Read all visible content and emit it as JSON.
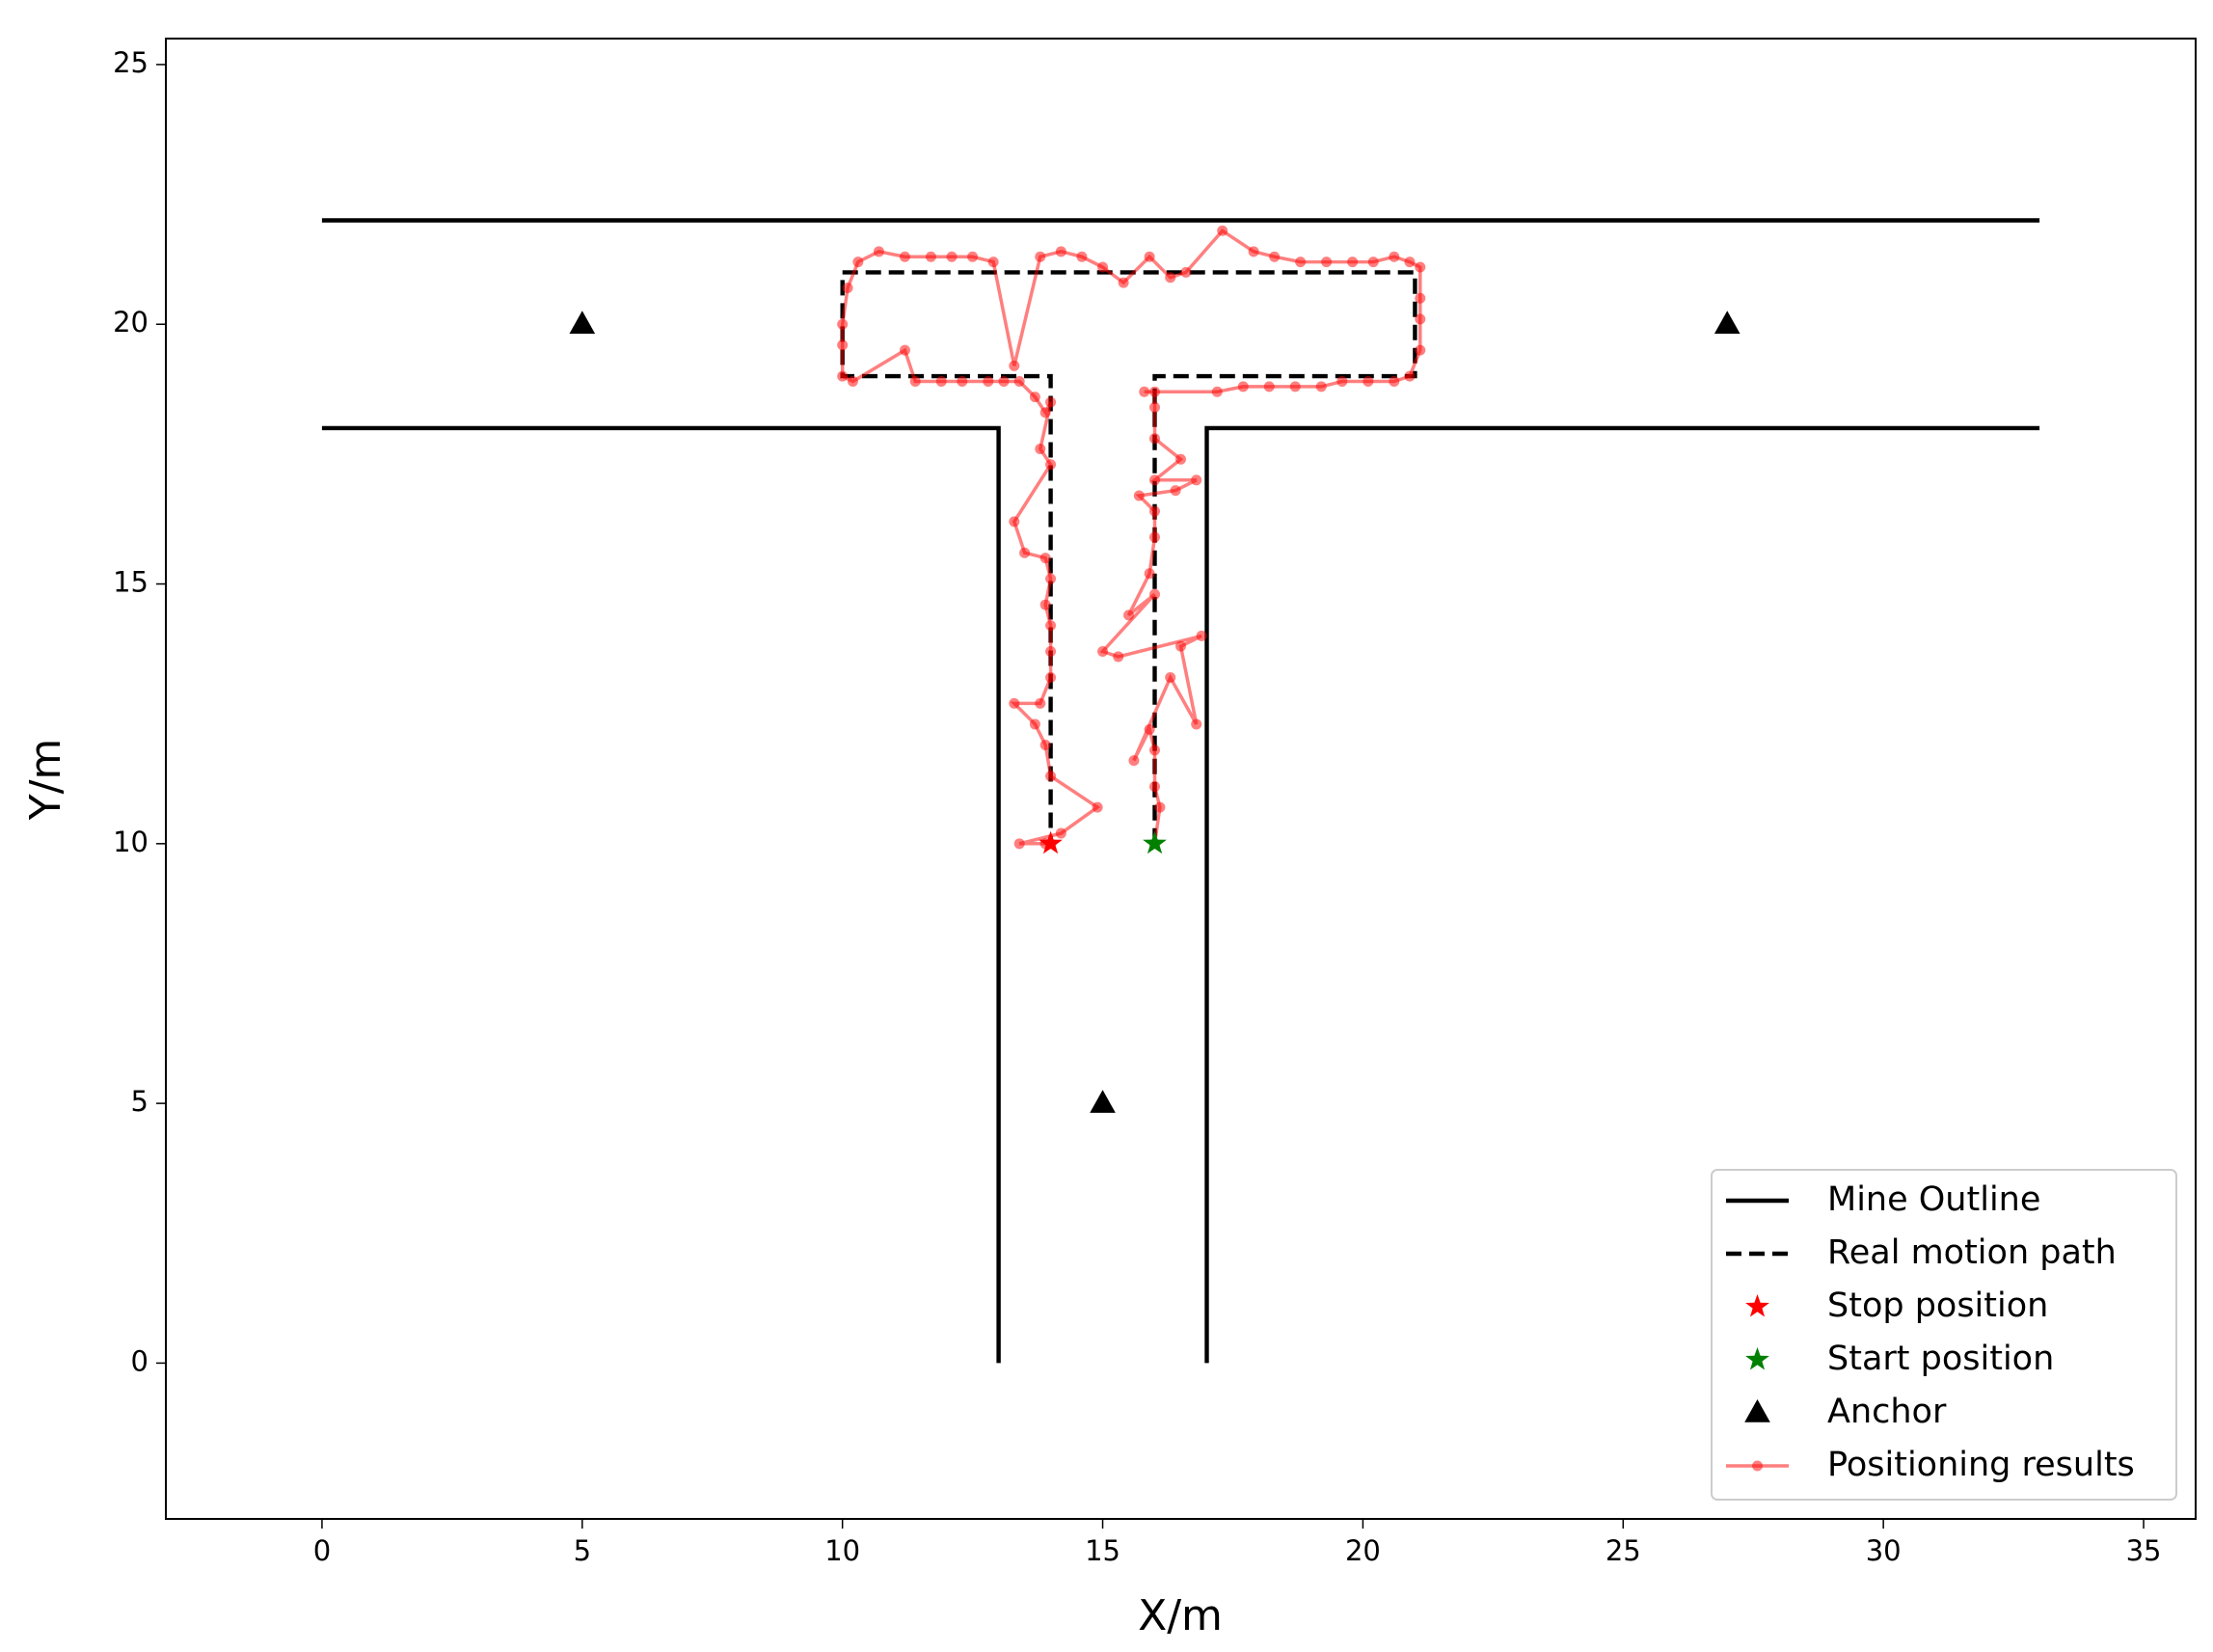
{
  "chart_data": {
    "type": "line",
    "xlabel": "X/m",
    "ylabel": "Y/m",
    "xlim": [
      -3,
      36
    ],
    "ylim": [
      -3,
      25.5
    ],
    "xticks": [
      0,
      5,
      10,
      15,
      20,
      25,
      30,
      35
    ],
    "yticks": [
      0,
      5,
      10,
      15,
      20,
      25
    ],
    "legend": "lower right",
    "series": [
      {
        "name": "Mine Outline",
        "color": "#000000",
        "style": "solid",
        "marker": "none",
        "x": [
          0,
          33,
          null,
          0,
          13,
          13,
          null,
          33,
          17,
          17
        ],
        "y": [
          22,
          22,
          null,
          18,
          18,
          0,
          null,
          18,
          18,
          0
        ]
      },
      {
        "name": "Real motion path",
        "color": "#000000",
        "style": "dashed",
        "marker": "none",
        "x": [
          16,
          16,
          21,
          21,
          10,
          10,
          14,
          14
        ],
        "y": [
          10,
          19,
          19,
          21,
          21,
          19,
          19,
          10
        ]
      },
      {
        "name": "Stop position",
        "color": "#ff0000",
        "style": "none",
        "marker": "star",
        "x": [
          14
        ],
        "y": [
          10
        ]
      },
      {
        "name": "Start position",
        "color": "#008000",
        "style": "none",
        "marker": "star",
        "x": [
          16
        ],
        "y": [
          10
        ]
      },
      {
        "name": "Anchor",
        "color": "#000000",
        "style": "none",
        "marker": "triangle",
        "x": [
          5,
          27,
          15
        ],
        "y": [
          20,
          20,
          5
        ]
      },
      {
        "name": "Positioning results",
        "color": "#ff0000",
        "style": "solid",
        "marker": "circle",
        "x": [
          16.0,
          16.1,
          16.0,
          16.0,
          15.9,
          15.6,
          16.3,
          16.8,
          16.5,
          16.9,
          15.3,
          15.0,
          16.0,
          15.5,
          15.9,
          16.0,
          16.0,
          15.7,
          16.4,
          16.8,
          16.0,
          16.5,
          16.0,
          16.0,
          16.0,
          15.8,
          17.2,
          17.7,
          18.2,
          18.7,
          19.2,
          19.6,
          20.1,
          20.6,
          20.9,
          21.1,
          21.1,
          21.1,
          21.1,
          20.9,
          20.6,
          20.2,
          19.8,
          19.3,
          18.8,
          18.3,
          17.9,
          17.3,
          16.6,
          16.3,
          15.9,
          15.4,
          15.0,
          14.6,
          14.2,
          13.8,
          13.3,
          12.9,
          12.5,
          12.1,
          11.7,
          11.2,
          10.7,
          10.3,
          10.1,
          10.0,
          10.0,
          10.0,
          10.2,
          11.2,
          11.4,
          11.9,
          12.3,
          12.8,
          13.1,
          13.4,
          13.7,
          13.9,
          14.0,
          13.8,
          14.0,
          13.3,
          13.5,
          13.9,
          14.0,
          13.9,
          14.0,
          14.0,
          14.0,
          13.8,
          13.3,
          13.7,
          13.9,
          14.0,
          14.9,
          14.2,
          13.4,
          13.9,
          14.0
        ],
        "y": [
          10.0,
          10.7,
          11.1,
          11.8,
          12.2,
          11.6,
          13.2,
          12.3,
          13.8,
          14.0,
          13.6,
          13.7,
          14.8,
          14.4,
          15.2,
          15.9,
          16.4,
          16.7,
          16.8,
          17.0,
          17.0,
          17.4,
          17.8,
          18.4,
          18.7,
          18.7,
          18.7,
          18.8,
          18.8,
          18.8,
          18.8,
          18.9,
          18.9,
          18.9,
          19.0,
          19.5,
          20.1,
          20.5,
          21.1,
          21.2,
          21.3,
          21.2,
          21.2,
          21.2,
          21.2,
          21.3,
          21.4,
          21.8,
          21.0,
          20.9,
          21.3,
          20.8,
          21.1,
          21.3,
          21.4,
          21.3,
          19.2,
          21.2,
          21.3,
          21.3,
          21.3,
          21.3,
          21.4,
          21.2,
          20.7,
          20.0,
          19.6,
          19.0,
          18.9,
          19.5,
          18.9,
          18.9,
          18.9,
          18.9,
          18.9,
          18.9,
          18.6,
          18.3,
          18.5,
          17.6,
          17.3,
          16.2,
          15.6,
          15.5,
          15.1,
          14.6,
          14.2,
          13.7,
          13.2,
          12.7,
          12.7,
          12.3,
          11.9,
          11.3,
          10.7,
          10.2,
          10.0,
          10.0,
          10.0
        ]
      }
    ]
  }
}
